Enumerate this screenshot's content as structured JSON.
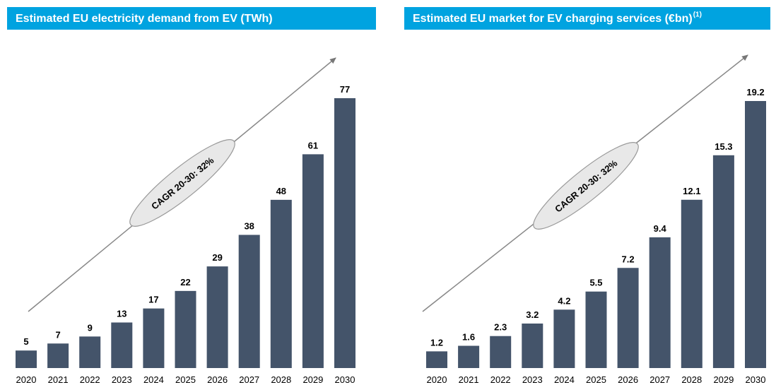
{
  "chart_data": [
    {
      "type": "bar",
      "title": "Estimated EU electricity demand from EV (TWh)",
      "categories": [
        "2020",
        "2021",
        "2022",
        "2023",
        "2024",
        "2025",
        "2026",
        "2027",
        "2028",
        "2029",
        "2030"
      ],
      "values": [
        5,
        7,
        9,
        13,
        17,
        22,
        29,
        38,
        48,
        61,
        77
      ],
      "color": "#44546a",
      "annotation": "CAGR 20-30: 32%"
    },
    {
      "type": "bar",
      "title": "Estimated EU market for EV charging services (€bn)",
      "title_note": "(1)",
      "categories": [
        "2020",
        "2021",
        "2022",
        "2023",
        "2024",
        "2025",
        "2026",
        "2027",
        "2028",
        "2029",
        "2030"
      ],
      "values": [
        1.2,
        1.6,
        2.3,
        3.2,
        4.2,
        5.5,
        7.2,
        9.4,
        12.1,
        15.3,
        19.2
      ],
      "color": "#44546a",
      "annotation": "CAGR 20-30: 32%"
    }
  ]
}
